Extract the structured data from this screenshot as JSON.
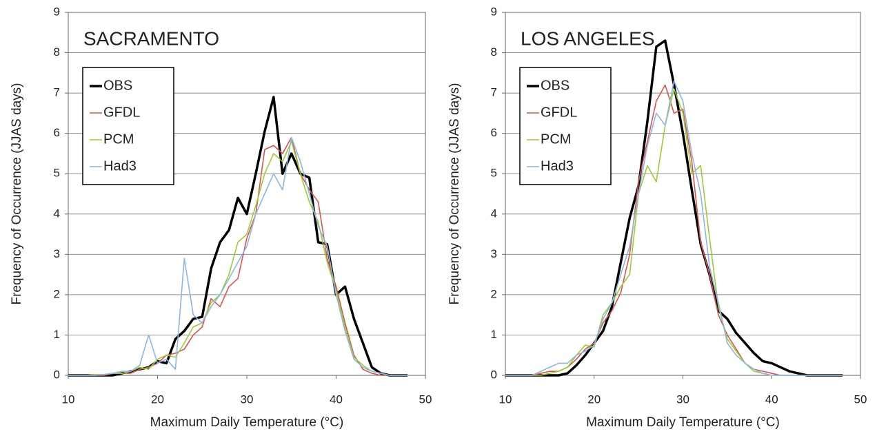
{
  "chart_data": [
    {
      "type": "line",
      "title": "SACRAMENTO",
      "x_label": "Maximum Daily Temperature (°C)",
      "y_label": "Frequency of Occurrence (JJAS days)",
      "x": [
        10,
        11,
        12,
        13,
        14,
        15,
        16,
        17,
        18,
        19,
        20,
        21,
        22,
        23,
        24,
        25,
        26,
        27,
        28,
        29,
        30,
        31,
        32,
        33,
        34,
        35,
        36,
        37,
        38,
        39,
        40,
        41,
        42,
        43,
        44,
        45,
        46,
        47,
        48
      ],
      "xlim": [
        10,
        50
      ],
      "xticks": [
        10,
        20,
        30,
        40,
        50
      ],
      "ylim": [
        0,
        9
      ],
      "yticks": [
        0,
        1,
        2,
        3,
        4,
        5,
        6,
        7,
        8,
        9
      ],
      "grid": true,
      "legend": "upper left",
      "series": [
        {
          "name": "OBS",
          "color": "#000000",
          "values": [
            0,
            0,
            0,
            0,
            0,
            0,
            0.05,
            0.1,
            0.15,
            0.2,
            0.35,
            0.3,
            0.9,
            1.1,
            1.4,
            1.45,
            2.65,
            3.3,
            3.6,
            4.4,
            4.0,
            5.0,
            6.05,
            6.9,
            5.0,
            5.5,
            5.0,
            4.9,
            3.3,
            3.25,
            2.0,
            2.2,
            1.4,
            0.8,
            0.2,
            0.05,
            0,
            0,
            0
          ]
        },
        {
          "name": "GFDL",
          "color": "#d9534f",
          "values": [
            0,
            0,
            0,
            0,
            0,
            0.05,
            0.05,
            0.05,
            0.15,
            0.2,
            0.3,
            0.5,
            0.55,
            0.65,
            1.0,
            1.2,
            1.9,
            1.7,
            2.2,
            2.4,
            3.4,
            4.0,
            5.6,
            5.7,
            5.5,
            5.9,
            5.0,
            4.6,
            4.3,
            2.9,
            2.2,
            1.3,
            0.5,
            0.15,
            0.05,
            0,
            0,
            0,
            0
          ]
        },
        {
          "name": "PCM",
          "color": "#9acd32",
          "values": [
            0,
            0,
            0,
            0.02,
            0.02,
            0.05,
            0.05,
            0.1,
            0.2,
            0.15,
            0.4,
            0.5,
            0.45,
            0.8,
            1.2,
            1.3,
            1.8,
            2.0,
            2.5,
            3.3,
            3.5,
            4.2,
            5.0,
            5.5,
            5.3,
            5.8,
            5.0,
            4.3,
            3.8,
            2.8,
            2.1,
            1.2,
            0.45,
            0.25,
            0.1,
            0.05,
            0,
            0,
            0
          ]
        },
        {
          "name": "Had3",
          "color": "#8eb4e3",
          "values": [
            0,
            0,
            0,
            0,
            0.02,
            0.05,
            0.1,
            0.1,
            0.25,
            1.0,
            0.3,
            0.4,
            0.15,
            2.9,
            1.5,
            1.3,
            1.7,
            2.0,
            2.4,
            2.8,
            3.2,
            4.0,
            4.5,
            5.0,
            4.6,
            5.9,
            5.3,
            4.5,
            3.7,
            3.2,
            2.0,
            1.1,
            0.4,
            0.2,
            0.1,
            0.05,
            0,
            0,
            0
          ]
        }
      ]
    },
    {
      "type": "line",
      "title": "LOS ANGELES",
      "x_label": "Maximum Daily Temperature (°C)",
      "y_label": "Frequency of Occurrence (JJAS days)",
      "x": [
        10,
        11,
        12,
        13,
        14,
        15,
        16,
        17,
        18,
        19,
        20,
        21,
        22,
        23,
        24,
        25,
        26,
        27,
        28,
        29,
        30,
        31,
        32,
        33,
        34,
        35,
        36,
        37,
        38,
        39,
        40,
        41,
        42,
        43,
        44,
        45,
        46,
        47,
        48
      ],
      "xlim": [
        10,
        50
      ],
      "xticks": [
        10,
        20,
        30,
        40,
        50
      ],
      "ylim": [
        0,
        9
      ],
      "yticks": [
        0,
        1,
        2,
        3,
        4,
        5,
        6,
        7,
        8,
        9
      ],
      "grid": true,
      "legend": "upper left",
      "series": [
        {
          "name": "OBS",
          "color": "#000000",
          "values": [
            0,
            0,
            0,
            0,
            0,
            0,
            0,
            0.05,
            0.25,
            0.5,
            0.8,
            1.1,
            1.7,
            2.8,
            3.9,
            4.7,
            6.3,
            8.15,
            8.3,
            7.2,
            6.0,
            4.6,
            3.25,
            2.5,
            1.6,
            1.4,
            1.05,
            0.8,
            0.55,
            0.35,
            0.3,
            0.2,
            0.1,
            0.05,
            0,
            0,
            0,
            0,
            0
          ]
        },
        {
          "name": "GFDL",
          "color": "#d9534f",
          "values": [
            0,
            0,
            0,
            0,
            0.05,
            0.1,
            0.1,
            0.2,
            0.4,
            0.65,
            0.8,
            1.3,
            1.6,
            2.05,
            3.0,
            4.8,
            5.8,
            6.8,
            7.2,
            6.5,
            6.6,
            5.3,
            3.3,
            2.5,
            1.5,
            1.0,
            0.65,
            0.3,
            0.15,
            0.1,
            0.05,
            0,
            0,
            0,
            0,
            0,
            0,
            0,
            0
          ]
        },
        {
          "name": "PCM",
          "color": "#9acd32",
          "values": [
            0,
            0,
            0,
            0,
            0,
            0.05,
            0.1,
            0.2,
            0.5,
            0.75,
            0.7,
            1.5,
            1.8,
            2.2,
            2.5,
            4.5,
            5.2,
            4.8,
            6.2,
            7.1,
            6.5,
            5.0,
            5.2,
            3.4,
            1.7,
            0.9,
            0.6,
            0.3,
            0.1,
            0.05,
            0,
            0,
            0,
            0,
            0,
            0,
            0,
            0,
            0
          ]
        },
        {
          "name": "Had3",
          "color": "#8eb4e3",
          "values": [
            0,
            0,
            0,
            0,
            0.1,
            0.2,
            0.3,
            0.3,
            0.5,
            0.6,
            0.75,
            1.4,
            1.8,
            2.5,
            3.2,
            4.5,
            5.7,
            6.5,
            6.2,
            7.3,
            6.8,
            5.5,
            4.5,
            2.7,
            1.8,
            0.8,
            0.5,
            0.3,
            0.15,
            0.05,
            0,
            0,
            0,
            0,
            0,
            0,
            0,
            0,
            0
          ]
        }
      ]
    }
  ]
}
